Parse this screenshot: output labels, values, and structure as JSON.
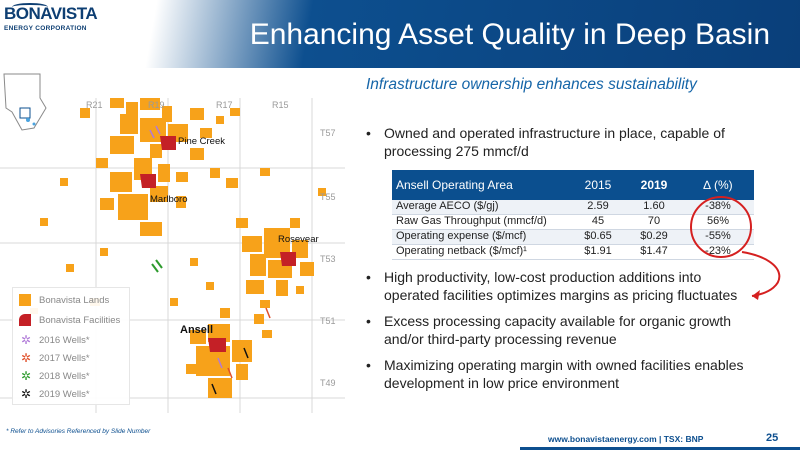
{
  "logo": {
    "name": "BONAVISTA",
    "sub": "ENERGY CORPORATION"
  },
  "header": {
    "title": "Enhancing Asset Quality in Deep Basin"
  },
  "subtitle": "Infrastructure ownership enhances sustainability",
  "map": {
    "ranges": [
      "R21",
      "R19",
      "R17",
      "R15"
    ],
    "townships": [
      "T57",
      "T55",
      "T53",
      "T51",
      "T49"
    ],
    "places": [
      "Pine Creek",
      "Marlboro",
      "Rosevear",
      "Ansell"
    ],
    "colors": {
      "lands": "#f7a21a",
      "facilities": "#c42026",
      "grid": "#d4d4d4"
    }
  },
  "legend": {
    "items": [
      {
        "label": "Bonavista Lands",
        "color": "#f7a21a"
      },
      {
        "label": "Bonavista Facilities",
        "color": "#c42026"
      },
      {
        "label": "2016 Wells*",
        "color": "#b07ad8"
      },
      {
        "label": "2017 Wells*",
        "color": "#e0502a"
      },
      {
        "label": "2018 Wells*",
        "color": "#2e9b2e"
      },
      {
        "label": "2019 Wells*",
        "color": "#111111"
      }
    ]
  },
  "bullets": [
    {
      "text1": "Owned and operated infrastructure in place, capable of",
      "text2": "processing 275 mmcf/d"
    },
    {
      "text1": "High productivity, low-cost production additions into",
      "text2": "operated facilities optimizes margins as pricing fluctuates"
    },
    {
      "text1": "Excess processing capacity available for organic growth",
      "text2": "and/or third-party processing revenue"
    },
    {
      "text1": "Maximizing operating margin with owned facilities enables",
      "text2": "development in low price environment"
    }
  ],
  "table": {
    "headers": [
      "Ansell Operating Area",
      "2015",
      "2019",
      "∆ (%)"
    ],
    "rows": [
      [
        "Average AECO ($/gj)",
        "2.59",
        "1.60",
        "-38%"
      ],
      [
        "Raw Gas Throughput (mmcf/d)",
        "45",
        "70",
        "56%"
      ],
      [
        "Operating expense ($/mcf)",
        "$0.65",
        "$0.29",
        "-55%"
      ],
      [
        "Operating netback ($/mcf)¹",
        "$1.91",
        "$1.47",
        "-23%"
      ]
    ]
  },
  "footer": {
    "note": "* Refer to Advisories Referenced by Slide Number",
    "url": "www.bonavistaenergy.com  |  TSX: BNP",
    "page": "25"
  },
  "accent": "#0b4f8f"
}
